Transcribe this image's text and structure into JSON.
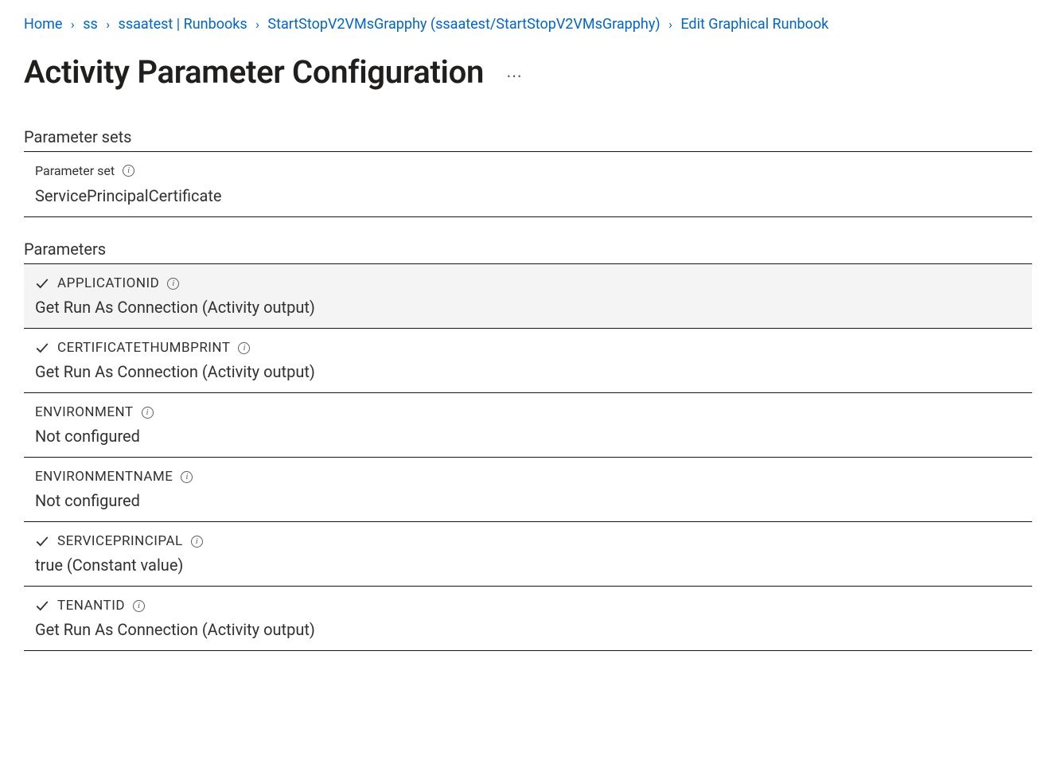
{
  "breadcrumb": {
    "items": [
      {
        "label": "Home"
      },
      {
        "label": "ss"
      },
      {
        "label": "ssaatest | Runbooks"
      },
      {
        "label": "StartStopV2VMsGrapphy (ssaatest/StartStopV2VMsGrapphy)"
      },
      {
        "label": "Edit Graphical Runbook"
      }
    ]
  },
  "page_title": "Activity Parameter Configuration",
  "sections": {
    "parameter_sets_heading": "Parameter sets",
    "parameters_heading": "Parameters"
  },
  "parameter_set": {
    "label": "Parameter set",
    "value": "ServicePrincipalCertificate"
  },
  "parameters": [
    {
      "name": "APPLICATIONID",
      "value": "Get Run As Connection (Activity output)",
      "configured": true,
      "highlight": true
    },
    {
      "name": "CERTIFICATETHUMBPRINT",
      "value": "Get Run As Connection (Activity output)",
      "configured": true,
      "highlight": false
    },
    {
      "name": "ENVIRONMENT",
      "value": "Not configured",
      "configured": false,
      "highlight": false
    },
    {
      "name": "ENVIRONMENTNAME",
      "value": "Not configured",
      "configured": false,
      "highlight": false
    },
    {
      "name": "SERVICEPRINCIPAL",
      "value": "true (Constant value)",
      "configured": true,
      "highlight": false
    },
    {
      "name": "TENANTID",
      "value": "Get Run As Connection (Activity output)",
      "configured": true,
      "highlight": false
    }
  ],
  "colors": {
    "link": "#0066cc",
    "text": "#323130",
    "muted": "#605e5c",
    "border": "#161616",
    "highlight_bg": "#f4f4f4",
    "background": "#ffffff"
  }
}
